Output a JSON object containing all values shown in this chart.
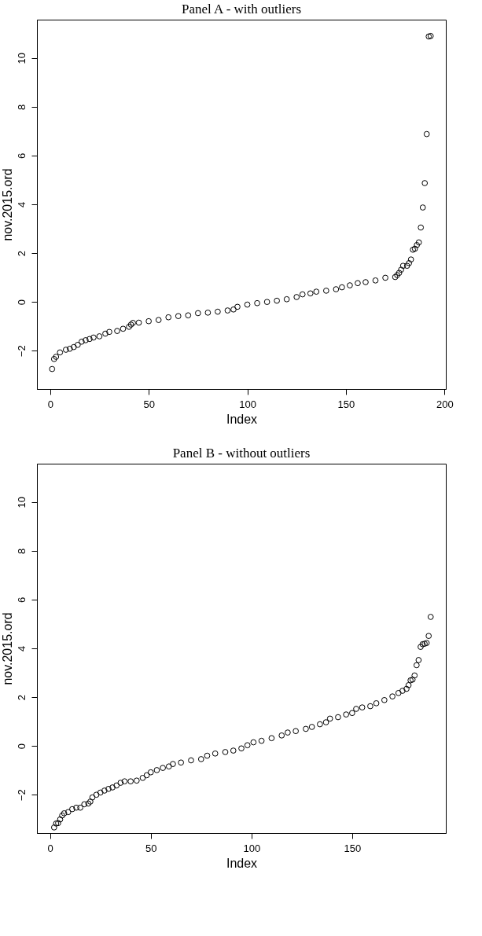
{
  "chart_data": [
    {
      "type": "scatter",
      "title": "Panel A - with outliers",
      "xlabel": "Index",
      "ylabel": "nov.2015.ord",
      "marker": "circle",
      "grid": false,
      "legend": false,
      "xlim": [
        -6.68,
        200.68
      ],
      "ylim": [
        -3.57,
        11.57
      ],
      "xticks": [
        0,
        50,
        100,
        150,
        200
      ],
      "yticks": [
        -2,
        0,
        2,
        4,
        6,
        8,
        10
      ],
      "series": [
        {
          "color": "#000000",
          "x": [
            1,
            2,
            3,
            5,
            8,
            10,
            12,
            14,
            16,
            18,
            20,
            22,
            25,
            28,
            30,
            34,
            37,
            40,
            41,
            42,
            45,
            50,
            55,
            60,
            65,
            70,
            75,
            80,
            85,
            90,
            93,
            95,
            100,
            105,
            110,
            115,
            120,
            125,
            128,
            132,
            135,
            140,
            145,
            148,
            152,
            156,
            160,
            165,
            170,
            175,
            176,
            177,
            178,
            179,
            181,
            182,
            183,
            184,
            185,
            186,
            187,
            188,
            189,
            190,
            191,
            192,
            193
          ],
          "values": [
            -2.75,
            -2.34,
            -2.25,
            -2.07,
            -1.96,
            -1.92,
            -1.85,
            -1.76,
            -1.63,
            -1.57,
            -1.52,
            -1.46,
            -1.41,
            -1.3,
            -1.23,
            -1.19,
            -1.1,
            -1.02,
            -0.93,
            -0.86,
            -0.85,
            -0.79,
            -0.74,
            -0.63,
            -0.58,
            -0.55,
            -0.46,
            -0.44,
            -0.4,
            -0.35,
            -0.31,
            -0.2,
            -0.11,
            -0.05,
            0.0,
            0.05,
            0.11,
            0.2,
            0.31,
            0.35,
            0.42,
            0.46,
            0.52,
            0.6,
            0.68,
            0.77,
            0.81,
            0.88,
            0.99,
            1.02,
            1.1,
            1.19,
            1.32,
            1.48,
            1.48,
            1.59,
            1.74,
            2.14,
            2.18,
            2.33,
            2.44,
            3.05,
            3.87,
            4.87,
            6.88,
            10.88,
            10.9
          ]
        }
      ]
    },
    {
      "type": "scatter",
      "title": "Panel B - without outliers",
      "xlabel": "Index",
      "ylabel": "nov.2015.ord",
      "marker": "circle",
      "grid": false,
      "legend": false,
      "xlim": [
        -6.52,
        196.52
      ],
      "ylim": [
        -3.57,
        11.57
      ],
      "xticks": [
        0,
        50,
        100,
        150
      ],
      "yticks": [
        -2,
        0,
        2,
        4,
        6,
        8,
        10
      ],
      "series": [
        {
          "color": "#000000",
          "x": [
            2,
            3,
            4,
            5,
            6,
            7,
            9,
            11,
            13,
            15,
            17,
            19,
            20,
            21,
            23,
            25,
            27,
            29,
            31,
            33,
            35,
            37,
            40,
            43,
            46,
            48,
            50,
            53,
            56,
            59,
            61,
            65,
            70,
            75,
            78,
            82,
            87,
            91,
            95,
            98,
            101,
            105,
            110,
            115,
            118,
            122,
            127,
            130,
            134,
            137,
            139,
            143,
            147,
            150,
            152,
            155,
            159,
            162,
            166,
            170,
            173,
            175,
            177,
            178,
            179,
            180,
            181,
            182,
            183,
            184,
            185,
            186,
            187,
            188,
            189
          ],
          "values": [
            -3.34,
            -3.18,
            -3.16,
            -3.01,
            -2.85,
            -2.76,
            -2.71,
            -2.59,
            -2.53,
            -2.53,
            -2.39,
            -2.36,
            -2.28,
            -2.11,
            -2.0,
            -1.91,
            -1.83,
            -1.76,
            -1.7,
            -1.62,
            -1.51,
            -1.45,
            -1.45,
            -1.42,
            -1.31,
            -1.2,
            -1.08,
            -0.99,
            -0.9,
            -0.84,
            -0.74,
            -0.68,
            -0.59,
            -0.54,
            -0.4,
            -0.31,
            -0.25,
            -0.19,
            -0.1,
            0.03,
            0.15,
            0.21,
            0.32,
            0.43,
            0.55,
            0.61,
            0.7,
            0.78,
            0.89,
            0.97,
            1.12,
            1.18,
            1.29,
            1.35,
            1.52,
            1.58,
            1.63,
            1.75,
            1.88,
            2.03,
            2.17,
            2.26,
            2.34,
            2.49,
            2.69,
            2.72,
            2.89,
            3.31,
            3.52,
            4.06,
            4.17,
            4.19,
            4.22,
            4.51,
            5.29
          ]
        }
      ]
    }
  ]
}
